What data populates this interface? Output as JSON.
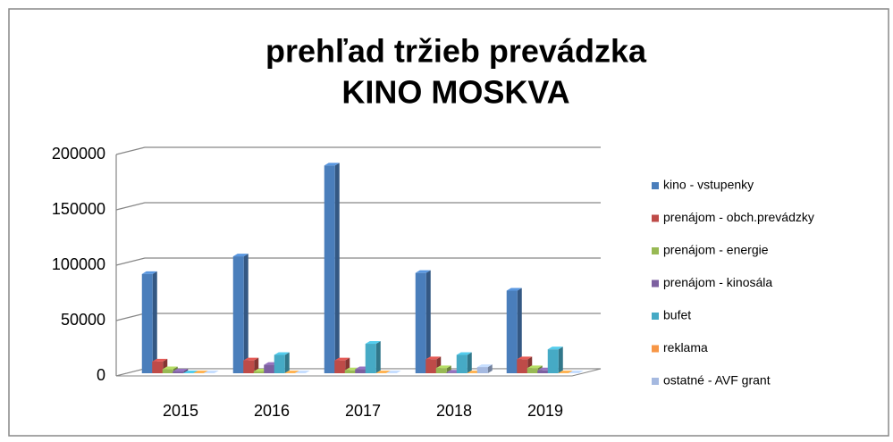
{
  "chart_data": {
    "type": "bar3d",
    "title": "prehľad tržieb prevádzka",
    "subtitle": "KINO MOSKVA",
    "categories": [
      "2015",
      "2016",
      "2017",
      "2018",
      "2019"
    ],
    "series": [
      {
        "name": "kino - vstupenky",
        "color": "#4a7ebb",
        "values": [
          92000,
          108000,
          190000,
          93000,
          77000
        ]
      },
      {
        "name": "prenájom - obch.prevádzky",
        "color": "#be4b48",
        "values": [
          13000,
          14000,
          14000,
          15000,
          15000
        ]
      },
      {
        "name": "prenájom  - energie",
        "color": "#98b954",
        "values": [
          6000,
          4000,
          5000,
          7000,
          7000
        ]
      },
      {
        "name": "prenájom -  kinosála",
        "color": "#7d60a0",
        "values": [
          4000,
          10000,
          6000,
          3000,
          5000
        ]
      },
      {
        "name": "bufet",
        "color": "#46aac5",
        "values": [
          0,
          19000,
          29000,
          19000,
          24000
        ]
      },
      {
        "name": "reklama",
        "color": "#f79646",
        "values": [
          1000,
          1000,
          2000,
          2000,
          2000
        ]
      },
      {
        "name": "ostatné - AVF grant",
        "color": "#a5b9e0",
        "values": [
          0,
          0,
          0,
          8000,
          0
        ]
      }
    ],
    "ylim": [
      0,
      200000
    ],
    "yticks": [
      0,
      50000,
      100000,
      150000,
      200000
    ],
    "grid": true,
    "legend": "right"
  }
}
